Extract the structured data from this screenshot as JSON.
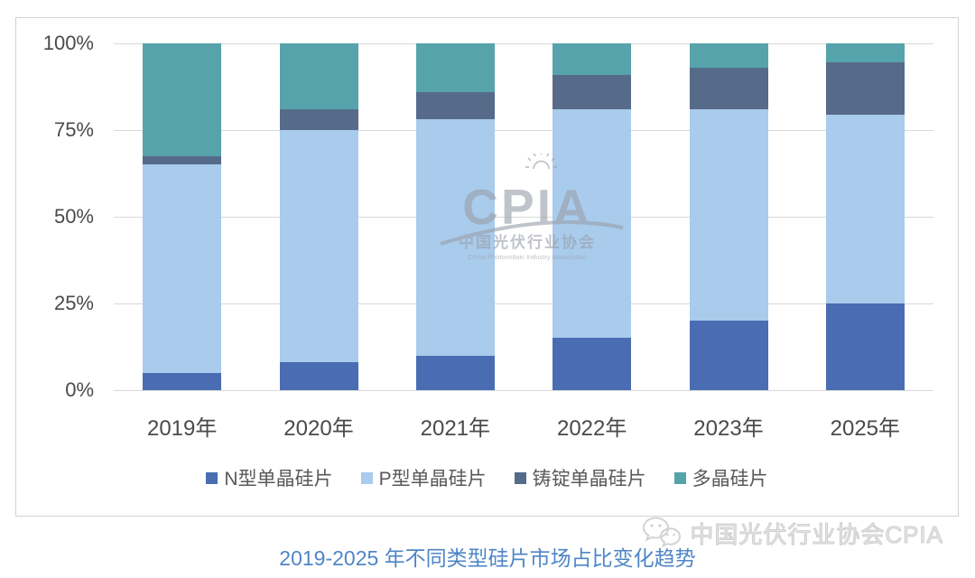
{
  "chart_data": {
    "type": "bar",
    "stacked": true,
    "title": "2019-2025 年不同类型硅片市场占比变化趋势",
    "categories": [
      "2019年",
      "2020年",
      "2021年",
      "2022年",
      "2023年",
      "2025年"
    ],
    "series": [
      {
        "name": "N型单晶硅片",
        "color": "#4a6cb3",
        "values": [
          5,
          8,
          10,
          15,
          20,
          25
        ]
      },
      {
        "name": "P型单晶硅片",
        "color": "#a9cbec",
        "values": [
          60,
          67,
          68,
          66,
          61,
          54.5
        ]
      },
      {
        "name": "铸锭单晶硅片",
        "color": "#566b8a",
        "values": [
          2.5,
          6,
          8,
          10,
          12,
          15
        ]
      },
      {
        "name": "多晶硅片",
        "color": "#57a3ab",
        "values": [
          32.5,
          19,
          14,
          9,
          7,
          5.5
        ]
      }
    ],
    "yticks": [
      {
        "label": "0%",
        "value": 0
      },
      {
        "label": "25%",
        "value": 25
      },
      {
        "label": "50%",
        "value": 50
      },
      {
        "label": "75%",
        "value": 75
      },
      {
        "label": "100%",
        "value": 100
      }
    ],
    "ylim": [
      0,
      100
    ],
    "unit": "percent",
    "grid": true,
    "legend_position": "bottom"
  },
  "watermark_center": {
    "brand": "CPIA",
    "org_cn": "中国光伏行业协会",
    "org_en": "China Photovoltaic Industry Association"
  },
  "watermark_bottom": {
    "icon": "wechat-icon",
    "text": "中国光伏行业协会CPIA"
  },
  "caption": {
    "text": "2019-2025 年不同类型硅片市场占比变化趋势",
    "color": "#4e86c6"
  },
  "colors": {
    "gridline": "#d9d9d9",
    "frame_border": "#d2d2d2",
    "axis_text": "#4a4a4a",
    "legend_text": "#595959",
    "caption_text": "#4e86c6",
    "watermark_gray": "#9aa1ab"
  }
}
